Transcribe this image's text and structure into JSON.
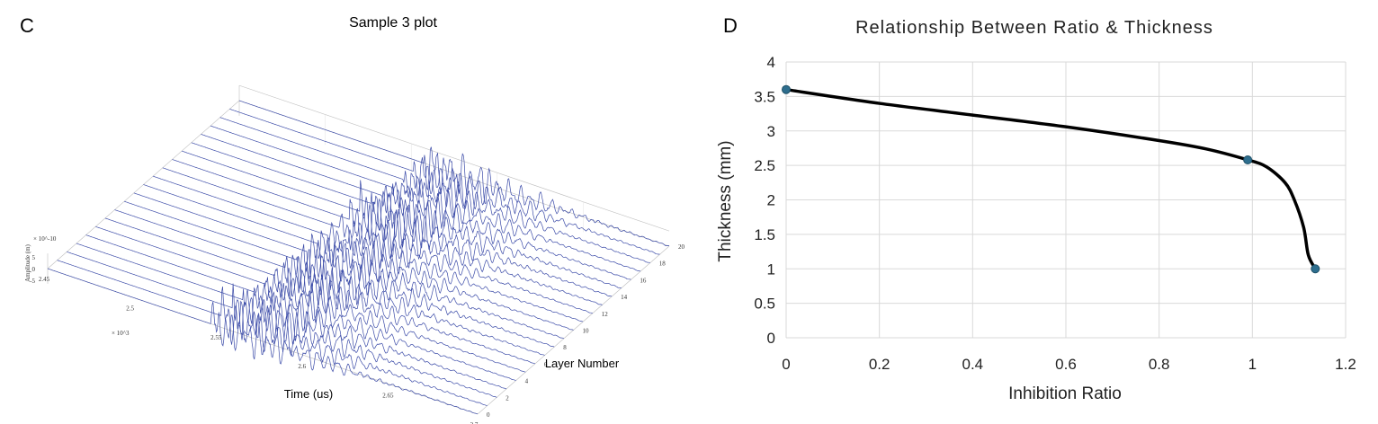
{
  "chart_data": [
    {
      "panel": "C",
      "type": "line",
      "subtype": "3d-waterfall",
      "title": "Sample 3 plot",
      "xlabel": "Time (us)",
      "ylabel": "Layer Number",
      "zlabel": "Amplitude (m)",
      "z_exponent_label": "× 10^-10",
      "x_exponent_label": "× 10^3",
      "x_ticks": [
        "2.45",
        "2.5",
        "2.55",
        "2.6",
        "2.65",
        "2.7"
      ],
      "y_ticks": [
        "0",
        "2",
        "4",
        "6",
        "8",
        "10",
        "12",
        "14",
        "16",
        "18",
        "20"
      ],
      "z_ticks": [
        "5",
        "0",
        "-5"
      ],
      "xlim": [
        2.45,
        2.7
      ],
      "ylim": [
        0,
        20
      ],
      "zlim": [
        -5,
        5
      ],
      "series_count": 21,
      "line_color": "#3b4ba8"
    },
    {
      "panel": "D",
      "type": "line",
      "title": "Relationship Between Ratio & Thickness",
      "xlabel": "Inhibition Ratio",
      "ylabel": "Thickness (mm)",
      "xlim": [
        0,
        1.2
      ],
      "ylim": [
        0,
        4
      ],
      "x_ticks": [
        "0",
        "0.2",
        "0.4",
        "0.6",
        "0.8",
        "1",
        "1.2"
      ],
      "y_ticks": [
        "0",
        "0.5",
        "1",
        "1.5",
        "2",
        "2.5",
        "3",
        "3.5",
        "4"
      ],
      "grid": true,
      "curve": {
        "x": [
          0,
          0.2,
          0.4,
          0.6,
          0.8,
          0.9,
          0.99,
          1.03,
          1.07,
          1.09,
          1.11,
          1.12,
          1.135
        ],
        "y": [
          3.6,
          3.4,
          3.23,
          3.06,
          2.86,
          2.74,
          2.58,
          2.48,
          2.25,
          2.0,
          1.6,
          1.2,
          1.0
        ]
      },
      "points": {
        "x": [
          0,
          0.99,
          1.135
        ],
        "y": [
          3.6,
          2.58,
          1.0
        ]
      },
      "line_color": "#000000",
      "point_color": "#2e6e8e"
    }
  ]
}
